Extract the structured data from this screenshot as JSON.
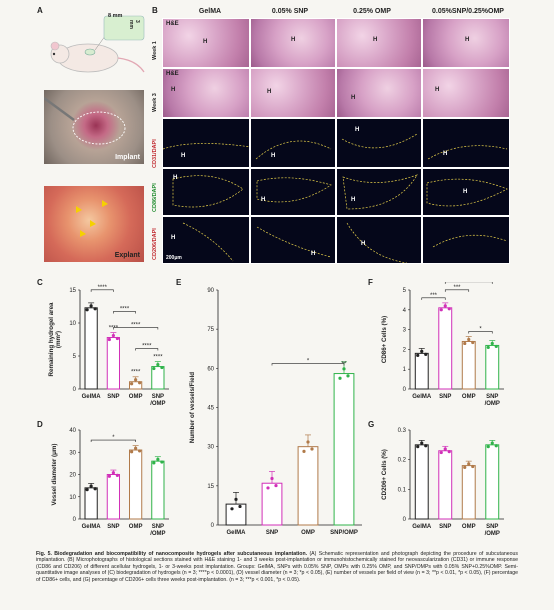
{
  "panels": {
    "A": "A",
    "B": "B",
    "C": "C",
    "D": "D",
    "E": "E",
    "F": "F",
    "G": "G"
  },
  "panel_a": {
    "dim_w": "8 mm",
    "dim_h": "3 mm",
    "implant": "Implant",
    "explant": "Explant"
  },
  "panel_b": {
    "columns": [
      "GelMA",
      "0.05% SNP",
      "0.25% OMP",
      "0.05%SNP/0.25%OMP"
    ],
    "rows": [
      {
        "label": "H&E\nWeek 1",
        "week": "Week 1",
        "stain": "H&E"
      },
      {
        "label": "Week 3",
        "week": "Week 3",
        "stain": "H&E"
      },
      {
        "label": "CD31/DAPI"
      },
      {
        "label": "CD86/DAPI"
      },
      {
        "label": "CD206/DAPI"
      }
    ],
    "h_mark": "H",
    "scalebar": "200μm"
  },
  "chart_data": [
    {
      "id": "C",
      "type": "bar",
      "categories": [
        "GelMA",
        "SNP",
        "OMP",
        "SNP\n/OMP"
      ],
      "values": [
        12.3,
        7.8,
        1.1,
        3.4
      ],
      "ylabel": "Remaining hydrogel area\n(mm²)",
      "ylim": [
        0,
        15
      ],
      "yticks": [
        0,
        5,
        10,
        15
      ],
      "sig": [
        "****",
        "****",
        "****",
        "****",
        "****"
      ]
    },
    {
      "id": "D",
      "type": "bar",
      "categories": [
        "GelMA",
        "SNP",
        "OMP",
        "SNP\n/OMP"
      ],
      "values": [
        14,
        20,
        31,
        26
      ],
      "ylabel": "Vessel diameter (μm)",
      "ylim": [
        0,
        40
      ],
      "yticks": [
        0,
        10,
        20,
        30,
        40
      ],
      "sig": [
        "*"
      ]
    },
    {
      "id": "E",
      "type": "bar",
      "categories": [
        "GelMA",
        "SNP",
        "OMP",
        "SNP/OMP"
      ],
      "values": [
        8,
        16,
        30,
        58
      ],
      "ylabel": "Number of vessels/Field",
      "ylim": [
        0,
        90
      ],
      "yticks": [
        0,
        15,
        30,
        45,
        60,
        75,
        90
      ],
      "sig": [
        "*",
        "**"
      ]
    },
    {
      "id": "F",
      "type": "bar",
      "categories": [
        "GelMA",
        "SNP",
        "OMP",
        "SNP\n/OMP"
      ],
      "values": [
        1.8,
        4.1,
        2.4,
        2.2
      ],
      "ylabel": "CD86+ Cells (%)",
      "ylim": [
        0,
        5
      ],
      "yticks": [
        0,
        1,
        2,
        3,
        4,
        5
      ],
      "sig": [
        "***",
        "***",
        "*",
        "***"
      ]
    },
    {
      "id": "G",
      "type": "bar",
      "categories": [
        "GelMA",
        "SNP",
        "OMP",
        "SNP\n/OMP"
      ],
      "values": [
        0.25,
        0.23,
        0.18,
        0.25
      ],
      "ylabel": "CD206+ Cells (%)",
      "ylim": [
        0,
        0.3
      ],
      "yticks": [
        0,
        0.1,
        0.2,
        0.3
      ]
    }
  ],
  "caption": {
    "title": "Fig. 5.  Biodegradation and biocompatibility of nanocomposite hydrogels after subcutaneous implantation.",
    "body": " (A) Schematic representation and photograph depicting the procedure of subcutaneous implantation. (B) Microphotographs of histological sections stained with H&E staining 1- and 3 weeks post-implantation or immunohistochemically stained for neovascularization (CD31) or immune response (CD86 and CD206) of different acellular hydrogels, 1- or 3-weeks post implantation. Groups: GelMA, SNPs with 0.05% SNP, OMPs with 0.25% OMP, and SNP/OMPs with 0.05% SNP+0.25%OMP. Semi-quantitative image analyses of (C) biodegradation of hydrogels (n = 3; ****p < 0.0001), (D) vessel diameter (n = 3; *p < 0.05), (E) number of vessels per field of view (n = 3; **p < 0.01, *p < 0.05), (F) percentage of CD86+ cells, and (G) percentage of CD206+ cells three weeks post-implantation. (n = 3; ***p < 0.001, *p < 0.05)."
  },
  "colors": {
    "gelma": "#222222",
    "snp": "#d12fb8",
    "omp": "#b07a4a",
    "snpomp": "#2fb34a"
  }
}
